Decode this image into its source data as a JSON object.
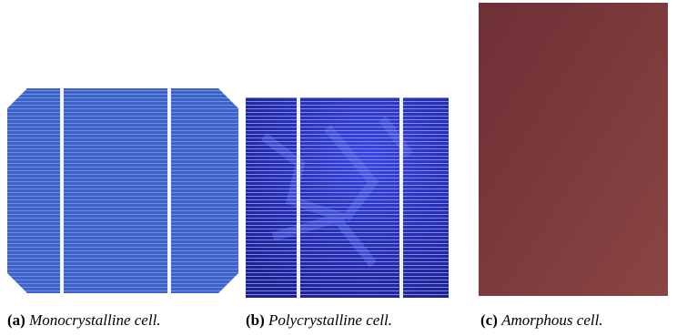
{
  "figures": [
    {
      "label": "(a)",
      "caption": "Monocrystalline cell."
    },
    {
      "label": "(b)",
      "caption": "Polycrystalline cell."
    },
    {
      "label": "(c)",
      "caption": "Amorphous cell."
    }
  ]
}
